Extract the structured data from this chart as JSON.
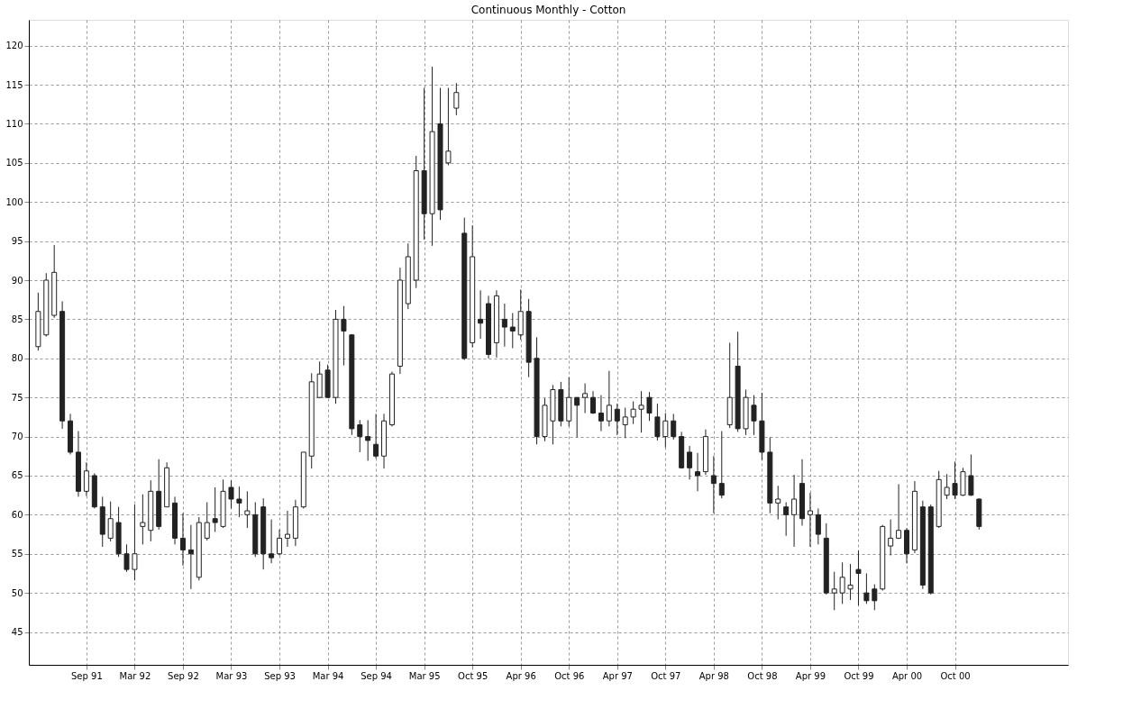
{
  "chart_data": {
    "type": "candlestick",
    "title": "Continuous Monthly - Cotton",
    "color": "#222222",
    "grid": true,
    "categories": [
      null,
      null,
      null,
      null,
      null,
      null,
      "Sep 91",
      null,
      null,
      null,
      null,
      null,
      "Mar 92",
      null,
      null,
      null,
      null,
      null,
      "Sep 92",
      null,
      null,
      null,
      null,
      null,
      "Mar 93",
      null,
      null,
      null,
      null,
      null,
      "Sep 93",
      null,
      null,
      null,
      null,
      null,
      "Mar 94",
      null,
      null,
      null,
      null,
      null,
      "Sep 94",
      null,
      null,
      null,
      null,
      null,
      "Mar 95",
      null,
      null,
      null,
      null,
      null,
      "Oct 95",
      null,
      null,
      null,
      null,
      null,
      "Apr 96",
      null,
      null,
      null,
      null,
      null,
      "Oct 96",
      null,
      null,
      null,
      null,
      null,
      "Apr 97",
      null,
      null,
      null,
      null,
      null,
      "Oct 97",
      null,
      null,
      null,
      null,
      null,
      "Apr 98",
      null,
      null,
      null,
      null,
      null,
      "Oct 98",
      null,
      null,
      null,
      null,
      null,
      "Apr 99",
      null,
      null,
      null,
      null,
      null,
      "Oct 99",
      null,
      null,
      null,
      null,
      null,
      "Apr 00",
      null,
      null,
      null,
      null,
      null,
      "Oct 00",
      null,
      null,
      null
    ],
    "ohlc": [
      [
        81.5,
        88.4,
        81,
        86
      ],
      [
        83,
        90.9,
        82.8,
        90
      ],
      [
        85.5,
        94.5,
        85.2,
        91
      ],
      [
        86,
        87.3,
        71,
        72
      ],
      [
        72,
        72.9,
        67.7,
        68
      ],
      [
        68,
        70.7,
        62.3,
        63
      ],
      [
        63,
        66.7,
        62.4,
        65.6
      ],
      [
        65,
        65.3,
        60.8,
        61
      ],
      [
        61,
        62.3,
        55.9,
        57.5
      ],
      [
        57,
        61.7,
        56.6,
        59.5
      ],
      [
        59,
        61,
        54.6,
        55
      ],
      [
        55,
        56.2,
        52.7,
        53
      ],
      [
        53,
        61.3,
        51.6,
        55
      ],
      [
        58.5,
        62.6,
        56.2,
        59
      ],
      [
        58,
        64.4,
        56.6,
        63
      ],
      [
        63,
        67.1,
        58.1,
        58.5
      ],
      [
        61,
        66.7,
        61,
        66
      ],
      [
        61.5,
        62.3,
        56.2,
        57
      ],
      [
        57,
        60.2,
        53.5,
        55.5
      ],
      [
        55.5,
        58.7,
        50.5,
        55
      ],
      [
        52,
        59.7,
        51.6,
        59
      ],
      [
        57,
        61.6,
        56.7,
        59
      ],
      [
        59.5,
        63.5,
        57.8,
        59
      ],
      [
        58.5,
        64.5,
        58.3,
        63
      ],
      [
        63.5,
        64.4,
        60.8,
        62
      ],
      [
        62,
        63.6,
        59.7,
        61.5
      ],
      [
        60,
        63,
        58.3,
        60.5
      ],
      [
        60,
        61.6,
        54.6,
        55
      ],
      [
        61,
        62.1,
        53,
        55
      ],
      [
        55,
        59.4,
        53.8,
        54.5
      ],
      [
        55,
        58.1,
        54.8,
        57
      ],
      [
        57,
        60.5,
        55.9,
        57.5
      ],
      [
        57,
        61.9,
        56,
        61
      ],
      [
        61,
        68,
        60.8,
        68
      ],
      [
        67.5,
        78.1,
        65.9,
        77
      ],
      [
        75,
        79.6,
        74.9,
        78
      ],
      [
        78.5,
        79.2,
        75,
        75
      ],
      [
        75,
        86.2,
        74.2,
        85
      ],
      [
        85,
        86.7,
        79.1,
        83.5
      ],
      [
        83,
        83.1,
        70.2,
        71
      ],
      [
        71.5,
        72.1,
        68,
        70
      ],
      [
        70,
        72.1,
        66.9,
        69.5
      ],
      [
        69,
        72.9,
        67.2,
        67.5
      ],
      [
        67.5,
        72.9,
        65.9,
        72
      ],
      [
        71.5,
        78.3,
        71.3,
        78
      ],
      [
        79,
        91.6,
        78,
        90
      ],
      [
        87,
        94.7,
        86.3,
        93
      ],
      [
        90,
        105.9,
        89,
        104
      ],
      [
        104,
        114.6,
        95.2,
        98.5
      ],
      [
        98.5,
        117.3,
        94.4,
        109
      ],
      [
        110,
        114.6,
        97.7,
        99
      ],
      [
        105,
        114.6,
        104.7,
        106.5
      ],
      [
        112,
        115.2,
        111.1,
        114
      ],
      [
        96,
        98,
        79.8,
        80
      ],
      [
        82,
        97,
        81.4,
        93
      ],
      [
        85,
        88.7,
        82.5,
        84.5
      ],
      [
        87,
        88,
        80,
        80.5
      ],
      [
        82,
        88.7,
        80.1,
        88
      ],
      [
        85,
        87,
        81.5,
        84
      ],
      [
        84,
        85.8,
        81.3,
        83.5
      ],
      [
        83,
        88.8,
        82.4,
        86
      ],
      [
        86,
        87.6,
        77.6,
        79.5
      ],
      [
        80,
        82.7,
        69,
        70
      ],
      [
        70,
        74.9,
        69.4,
        74
      ],
      [
        72,
        76.6,
        69,
        76
      ],
      [
        76,
        77,
        71.3,
        72
      ],
      [
        72,
        77.6,
        71.3,
        75
      ],
      [
        75,
        75,
        69.9,
        74
      ],
      [
        75,
        76.8,
        73,
        75.5
      ],
      [
        75,
        75.8,
        72.9,
        73
      ],
      [
        73,
        75.3,
        70.7,
        72
      ],
      [
        72,
        78.4,
        71.3,
        74
      ],
      [
        73.5,
        74.2,
        70.2,
        72
      ],
      [
        71.5,
        73.7,
        69.8,
        72.5
      ],
      [
        72.5,
        74.5,
        71.6,
        73.5
      ],
      [
        73.5,
        75.8,
        70.5,
        74
      ],
      [
        75,
        75.7,
        72,
        73
      ],
      [
        72.5,
        74.2,
        69.5,
        70
      ],
      [
        70,
        73,
        68.6,
        72
      ],
      [
        72,
        72.9,
        69.6,
        70
      ],
      [
        70,
        70.6,
        65.9,
        66
      ],
      [
        68,
        68.8,
        64.5,
        66
      ],
      [
        65.5,
        67.9,
        63,
        65
      ],
      [
        65.5,
        70.9,
        65.1,
        70
      ],
      [
        65,
        67.5,
        60.2,
        64
      ],
      [
        64,
        70.7,
        62.1,
        62.5
      ],
      [
        71.5,
        82,
        71.1,
        75
      ],
      [
        79,
        83.4,
        70.6,
        71
      ],
      [
        71,
        76,
        70.2,
        75
      ],
      [
        74,
        75.3,
        70.2,
        72
      ],
      [
        72,
        75.6,
        67,
        68
      ],
      [
        68,
        69.9,
        60.2,
        61.5
      ],
      [
        61.5,
        63.7,
        59.4,
        62
      ],
      [
        61,
        61.6,
        57.3,
        60
      ],
      [
        60,
        65.1,
        55.9,
        62
      ],
      [
        64,
        67.1,
        58.6,
        59.5
      ],
      [
        60,
        62.8,
        55.9,
        60.5
      ],
      [
        60,
        60.8,
        56.2,
        57.5
      ],
      [
        57,
        58.9,
        49.8,
        50
      ],
      [
        50,
        52.7,
        47.8,
        50.5
      ],
      [
        50,
        53.9,
        48.6,
        52
      ],
      [
        50.5,
        53.7,
        49.1,
        51
      ],
      [
        53,
        55.4,
        48.4,
        52.5
      ],
      [
        50,
        52.5,
        48.6,
        49
      ],
      [
        50.5,
        51.1,
        47.8,
        49
      ],
      [
        50.5,
        58.7,
        50.3,
        58.5
      ],
      [
        56,
        59.4,
        54.8,
        57
      ],
      [
        57,
        63.9,
        56.9,
        58
      ],
      [
        58,
        58.3,
        53.8,
        55
      ],
      [
        55.5,
        64.3,
        55.1,
        63
      ],
      [
        61,
        61.8,
        50.5,
        51
      ],
      [
        61,
        61.3,
        49.8,
        50
      ],
      [
        58.5,
        65.6,
        58.3,
        64.5
      ],
      [
        62.5,
        65.2,
        62,
        63.5
      ],
      [
        64,
        66.8,
        62,
        62.5
      ],
      [
        62.5,
        66,
        62.4,
        65.5
      ],
      [
        65,
        67.7,
        62.4,
        62.5
      ],
      [
        62,
        62.1,
        58.1,
        58.5
      ]
    ],
    "ylim": [
      40.8,
      123.3
    ],
    "yticks": [
      45,
      50,
      55,
      60,
      65,
      70,
      75,
      80,
      85,
      90,
      95,
      100,
      105,
      110,
      115,
      120
    ]
  }
}
